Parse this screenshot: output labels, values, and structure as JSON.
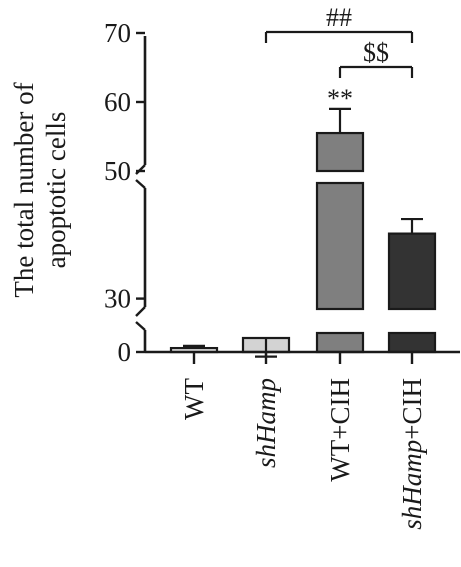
{
  "chart_data": {
    "type": "bar",
    "ylabel": "The total number of apoptotic cells",
    "ylabel_lines": [
      "The total number of",
      "apoptotic cells"
    ],
    "categories": [
      {
        "name": "WT",
        "parts": [
          {
            "text": "WT",
            "italic": false
          }
        ]
      },
      {
        "name": "shHamp",
        "parts": [
          {
            "text": "shHamp",
            "italic": true
          }
        ]
      },
      {
        "name": "WT+CIH",
        "parts": [
          {
            "text": "WT+CIH",
            "italic": false
          }
        ]
      },
      {
        "name": "shHamp+CIH",
        "parts": [
          {
            "text": "shHamp",
            "italic": true
          },
          {
            "text": "+CIH",
            "italic": false
          }
        ]
      }
    ],
    "values": [
      0.7,
      2.5,
      55.5,
      42.5
    ],
    "errors": [
      0.4,
      0.6,
      3.5,
      2.8
    ],
    "bar_colors": [
      "#ececec",
      "#d3d3d3",
      "#7f7f7f",
      "#333333"
    ],
    "axis_breaks": [
      [
        2.7,
        28
      ],
      [
        48,
        50
      ]
    ],
    "yticks": [
      0,
      30,
      50,
      60,
      70
    ],
    "ylim": [
      0,
      70
    ],
    "significance": [
      {
        "label": "**",
        "bar": "WT+CIH"
      },
      {
        "label": "##",
        "from": "shHamp",
        "to": "shHamp+CIH"
      },
      {
        "label": "$$",
        "from": "WT+CIH",
        "to": "shHamp+CIH"
      }
    ],
    "grid": false,
    "legend": "none"
  }
}
